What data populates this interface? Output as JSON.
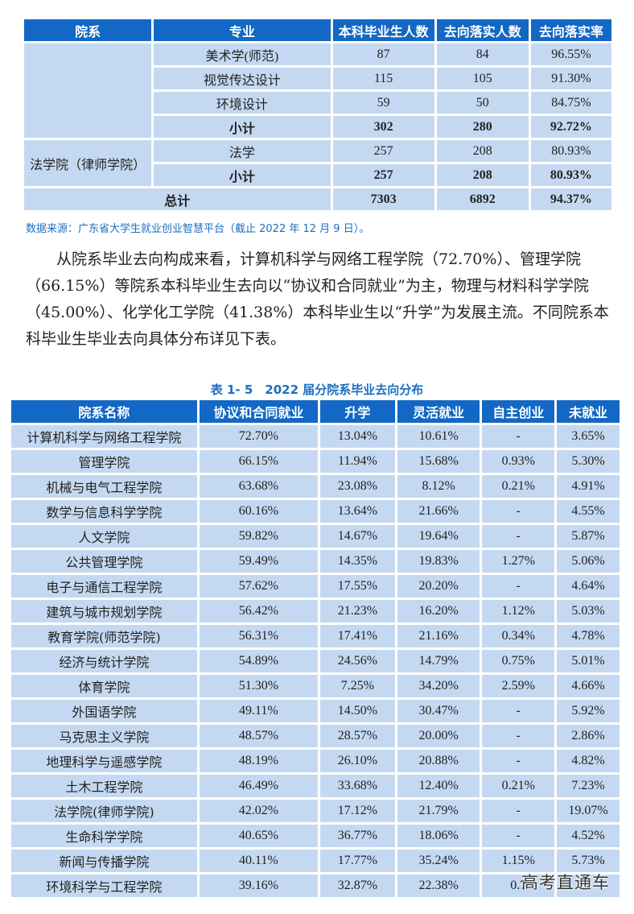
{
  "table1": {
    "headers": [
      "院系",
      "专业",
      "本科毕业生人数",
      "去向落实人数",
      "去向落实率"
    ],
    "group1": {
      "dept": "",
      "rows": [
        {
          "major": "美术学(师范)",
          "grads": "87",
          "placed": "84",
          "rate": "96.55%"
        },
        {
          "major": "视觉传达设计",
          "grads": "115",
          "placed": "105",
          "rate": "91.30%"
        },
        {
          "major": "环境设计",
          "grads": "59",
          "placed": "50",
          "rate": "84.75%"
        }
      ],
      "subtotal": {
        "major": "小计",
        "grads": "302",
        "placed": "280",
        "rate": "92.72%"
      }
    },
    "group2": {
      "dept": "法学院（律师学院）",
      "rows": [
        {
          "major": "法学",
          "grads": "257",
          "placed": "208",
          "rate": "80.93%"
        }
      ],
      "subtotal": {
        "major": "小计",
        "grads": "257",
        "placed": "208",
        "rate": "80.93%"
      }
    },
    "total": {
      "label": "总计",
      "grads": "7303",
      "placed": "6892",
      "rate": "94.37%"
    }
  },
  "source_note": "数据来源：广东省大学生就业创业智慧平台（截止 2022 年 12 月 9 日）。",
  "paragraph": "从院系毕业去向构成来看，计算机科学与网络工程学院（72.70%）、管理学院（66.15%）等院系本科毕业生去向以“协议和合同就业”为主，物理与材料科学学院（45.00%）、化学化工学院（41.38%）本科毕业生以“升学”为发展主流。不同院系本科毕业生毕业去向具体分布详见下表。",
  "table2": {
    "caption": "表 1- 5　2022 届分院系毕业去向分布",
    "headers": [
      "院系名称",
      "协议和合同就业",
      "升学",
      "灵活就业",
      "自主创业",
      "未就业"
    ],
    "rows": [
      [
        "计算机科学与网络工程学院",
        "72.70%",
        "13.04%",
        "10.61%",
        "-",
        "3.65%"
      ],
      [
        "管理学院",
        "66.15%",
        "11.94%",
        "15.68%",
        "0.93%",
        "5.30%"
      ],
      [
        "机械与电气工程学院",
        "63.68%",
        "23.08%",
        "8.12%",
        "0.21%",
        "4.91%"
      ],
      [
        "数学与信息科学学院",
        "60.16%",
        "13.64%",
        "21.66%",
        "-",
        "4.55%"
      ],
      [
        "人文学院",
        "59.82%",
        "14.67%",
        "19.64%",
        "-",
        "5.87%"
      ],
      [
        "公共管理学院",
        "59.49%",
        "14.35%",
        "19.83%",
        "1.27%",
        "5.06%"
      ],
      [
        "电子与通信工程学院",
        "57.62%",
        "17.55%",
        "20.20%",
        "-",
        "4.64%"
      ],
      [
        "建筑与城市规划学院",
        "56.42%",
        "21.23%",
        "16.20%",
        "1.12%",
        "5.03%"
      ],
      [
        "教育学院(师范学院)",
        "56.31%",
        "17.41%",
        "21.16%",
        "0.34%",
        "4.78%"
      ],
      [
        "经济与统计学院",
        "54.89%",
        "24.56%",
        "14.79%",
        "0.75%",
        "5.01%"
      ],
      [
        "体育学院",
        "51.30%",
        "7.25%",
        "34.20%",
        "2.59%",
        "4.66%"
      ],
      [
        "外国语学院",
        "49.11%",
        "14.50%",
        "30.47%",
        "-",
        "5.92%"
      ],
      [
        "马克思主义学院",
        "48.57%",
        "28.57%",
        "20.00%",
        "-",
        "2.86%"
      ],
      [
        "地理科学与遥感学院",
        "48.19%",
        "26.10%",
        "20.88%",
        "-",
        "4.82%"
      ],
      [
        "土木工程学院",
        "46.49%",
        "33.68%",
        "12.40%",
        "0.21%",
        "7.23%"
      ],
      [
        "法学院(律师学院)",
        "42.02%",
        "17.12%",
        "21.79%",
        "-",
        "19.07%"
      ],
      [
        "生命科学学院",
        "40.65%",
        "36.77%",
        "18.06%",
        "-",
        "4.52%"
      ],
      [
        "新闻与传播学院",
        "40.11%",
        "17.77%",
        "35.24%",
        "1.15%",
        "5.73%"
      ],
      [
        "环境科学与工程学院",
        "39.16%",
        "32.87%",
        "22.38%",
        "0.7",
        ""
      ]
    ]
  },
  "watermark": "高考直通车",
  "colors": {
    "header_bg": "#1268c4",
    "cell_bg": "#c4d9f1",
    "accent_text": "#1a6fc0"
  }
}
